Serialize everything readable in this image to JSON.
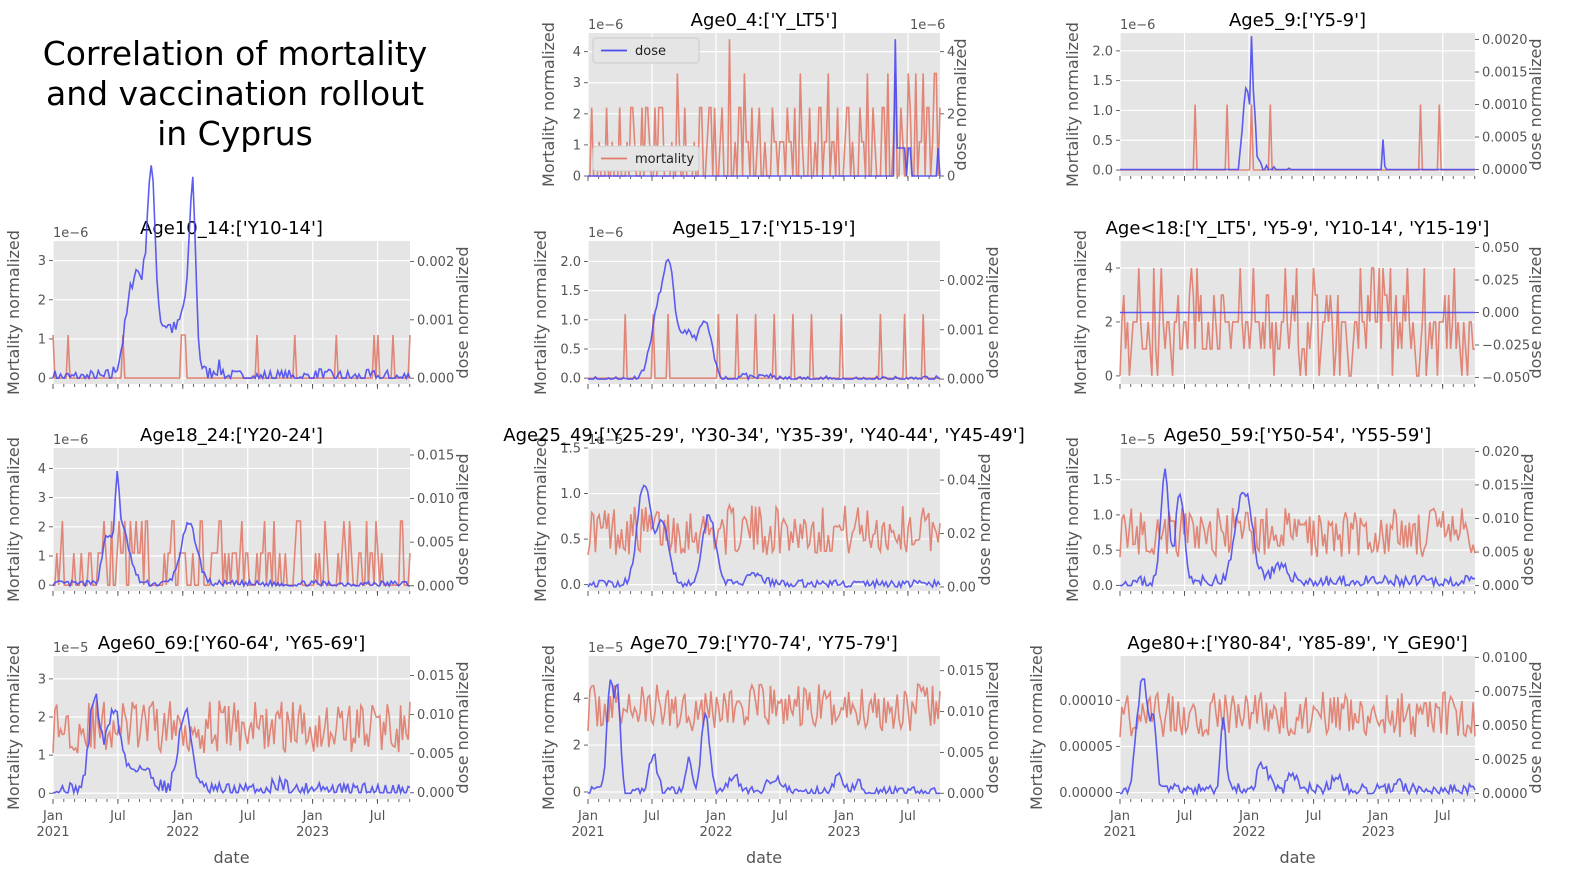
{
  "figure": {
    "suptitle": "Correlation of mortality\n and vaccination rollout\n in Cyprus"
  },
  "colors": {
    "mortality": "#e07b6a",
    "dose": "#4b4bf0"
  },
  "chart_data": [
    {
      "type": "line",
      "title": "Age0_4:['Y_LT5']",
      "xlabel": "",
      "ylabel": "Mortality normalized",
      "y2label": "dose normalized",
      "yticks": [
        0,
        1,
        2,
        3,
        4
      ],
      "yticklabels": [
        "0",
        "1",
        "2",
        "3",
        "4"
      ],
      "ylim": [
        0,
        4.6
      ],
      "yoffset": "1e−6",
      "y2ticks": [
        0,
        2,
        4
      ],
      "y2ticklabels": [
        "0",
        "2",
        "4"
      ],
      "y2lim": [
        0,
        4.6
      ],
      "y2offset": "1e−6",
      "legend": [
        {
          "name": "dose",
          "loc": "top-left"
        },
        {
          "name": "mortality",
          "loc": "bottom-left"
        }
      ],
      "series": [
        {
          "name": "mortality",
          "axis": "left",
          "values": [
            0,
            2.2,
            0,
            0,
            1.1,
            0,
            0,
            2.2,
            0,
            1.1,
            0,
            0,
            2.2,
            0,
            0,
            1.1,
            0,
            2.2,
            1.1,
            0,
            0,
            2.2,
            0,
            2.2,
            1.1,
            0,
            2.2,
            0,
            2.2,
            2.2,
            0,
            0,
            0,
            1.1,
            0,
            3.3,
            1.1,
            0,
            2.2,
            0,
            0,
            0,
            1.1,
            0,
            2.2,
            2.2,
            0,
            1.1,
            2.2,
            0,
            2.2,
            0,
            1.1,
            2.2,
            0,
            0,
            4.4,
            0,
            1.1,
            0,
            2.2,
            0,
            3.3,
            1.1,
            0,
            2.2,
            0,
            1.1,
            2.2,
            0,
            1.1,
            0,
            0,
            2.2,
            1.1,
            0,
            1.1,
            1.1,
            0,
            2.2,
            1.1,
            0,
            2.2,
            0,
            3.3,
            1.1,
            0,
            0,
            2.2,
            0,
            1.1,
            0,
            2.2,
            0,
            1.1,
            3.3,
            0,
            1.1,
            0,
            2.2,
            0,
            0,
            1.1,
            2.2,
            0,
            1.1,
            0,
            0,
            2.2,
            1.1,
            0,
            3.3,
            0,
            2.2,
            1.1,
            0,
            0,
            2.2,
            0,
            3.3,
            0,
            1.1,
            3.3,
            0,
            2.2,
            1.1,
            0,
            3.3,
            2.2,
            0,
            3.3,
            0,
            1.1,
            3.3,
            0,
            2.2,
            0,
            1.1,
            3.3,
            0,
            2.2
          ]
        },
        {
          "name": "dose",
          "axis": "right",
          "values": [
            0,
            0,
            0,
            0,
            0,
            0,
            0,
            0,
            0,
            0,
            0,
            0,
            0,
            0,
            0,
            0,
            0,
            0,
            0,
            0,
            0,
            0,
            0,
            0,
            0,
            0,
            0,
            0,
            0,
            0,
            0,
            0,
            0,
            0,
            0,
            0,
            0,
            0,
            0,
            0,
            0,
            0,
            0,
            0,
            0,
            0,
            0,
            0,
            0,
            0,
            0,
            0,
            0,
            0,
            0,
            0,
            0,
            0,
            0,
            0,
            0,
            0,
            0,
            0,
            0,
            0,
            0,
            0,
            0,
            0,
            0,
            0,
            0,
            0,
            0,
            0,
            0,
            0,
            0,
            0,
            0,
            0,
            0,
            0,
            0,
            0,
            0,
            0,
            0,
            0,
            0,
            0,
            0,
            0,
            0,
            0,
            0,
            0,
            0,
            0,
            0,
            0,
            0,
            0,
            0,
            0,
            0,
            0,
            0,
            0,
            0,
            0,
            0,
            0,
            0,
            0,
            0,
            0,
            0,
            0,
            0,
            0,
            0,
            0,
            0,
            0,
            0,
            4.4,
            0.9,
            0.9,
            0.9,
            0.9,
            0,
            0.9,
            0,
            0,
            0,
            0,
            0,
            0,
            0,
            0,
            0,
            0,
            0,
            0.9,
            0
          ]
        }
      ]
    },
    {
      "type": "line",
      "title": "Age5_9:['Y5-9']",
      "ylabel": "Mortality normalized",
      "y2label": "dose normalized",
      "yticks": [
        0,
        0.5,
        1,
        1.5,
        2
      ],
      "yticklabels": [
        "0.0",
        "0.5",
        "1.0",
        "1.5",
        "2.0"
      ],
      "ylim": [
        -0.1,
        2.3
      ],
      "yoffset": "1e−6",
      "y2ticks": [
        0,
        0.0005,
        0.001,
        0.0015,
        0.002
      ],
      "y2ticklabels": [
        "0.0000",
        "0.0005",
        "0.0010",
        "0.0015",
        "0.0020"
      ],
      "y2lim": [
        -0.0001,
        0.0021
      ],
      "y2offset": "",
      "series": [
        {
          "name": "mortality",
          "axis": "left",
          "sparse": [
            [
              40,
              1.1
            ],
            [
              57,
              1.1
            ],
            [
              70,
              1.1
            ],
            [
              80,
              1.1
            ],
            [
              160,
              1.1
            ],
            [
              170,
              1.1
            ]
          ],
          "n": 190
        },
        {
          "name": "dose",
          "axis": "right",
          "sparse": [
            [
              64,
              0.0003
            ],
            [
              65,
              0.0006
            ],
            [
              66,
              0.001
            ],
            [
              67,
              0.00125
            ],
            [
              68,
              0.0012
            ],
            [
              69,
              0.001
            ],
            [
              70,
              0.00205
            ],
            [
              71,
              0.0012
            ],
            [
              72,
              0.0008
            ],
            [
              73,
              0.0002
            ],
            [
              74,
              0.00015
            ],
            [
              75,
              0.0001
            ],
            [
              78,
              6e-05
            ],
            [
              82,
              4e-05
            ],
            [
              90,
              2e-05
            ],
            [
              140,
              0.00046
            ],
            [
              141,
              5e-05
            ]
          ],
          "n": 190
        }
      ]
    },
    {
      "type": "line",
      "title": "Age10_14:['Y10-14']",
      "ylabel": "Mortality normalized",
      "y2label": "dose normalized",
      "yticks": [
        0,
        1,
        2,
        3
      ],
      "yticklabels": [
        "0",
        "1",
        "2",
        "3"
      ],
      "ylim": [
        -0.15,
        3.5
      ],
      "yoffset": "1e−6",
      "y2ticks": [
        0,
        0.001,
        0.002
      ],
      "y2ticklabels": [
        "0.000",
        "0.001",
        "0.002"
      ],
      "y2lim": [
        -0.0001,
        0.00235
      ],
      "y2offset": "",
      "series": [
        {
          "name": "mortality",
          "axis": "left",
          "sparse": [
            [
              0,
              1.1
            ],
            [
              8,
              1.1
            ],
            [
              37,
              1.1
            ],
            [
              68,
              1.1
            ],
            [
              69,
              1.1
            ],
            [
              70,
              1.1
            ],
            [
              108,
              1.1
            ],
            [
              128,
              1.1
            ],
            [
              150,
              1.1
            ],
            [
              170,
              1.1
            ],
            [
              172,
              1.1
            ],
            [
              180,
              1.1
            ],
            [
              189,
              1.1
            ]
          ],
          "n": 190
        },
        {
          "name": "dose",
          "axis": "right",
          "curve": "age10"
        }
      ]
    },
    {
      "type": "line",
      "title": "Age15_17:['Y15-19']",
      "ylabel": "Mortality normalized",
      "y2label": "dose normalized",
      "yticks": [
        0,
        0.5,
        1,
        1.5,
        2
      ],
      "yticklabels": [
        "0.0",
        "0.5",
        "1.0",
        "1.5",
        "2.0"
      ],
      "ylim": [
        -0.1,
        2.35
      ],
      "yoffset": "1e−6",
      "y2ticks": [
        0,
        0.001,
        0.002
      ],
      "y2ticklabels": [
        "0.000",
        "0.001",
        "0.002"
      ],
      "y2lim": [
        -0.0001,
        0.0028
      ],
      "y2offset": "",
      "series": [
        {
          "name": "mortality",
          "axis": "left",
          "sparse": [
            [
              20,
              1.1
            ],
            [
              35,
              1.1
            ],
            [
              43,
              1.1
            ],
            [
              70,
              1.1
            ],
            [
              80,
              1.1
            ],
            [
              90,
              1.1
            ],
            [
              100,
              1.1
            ],
            [
              110,
              1.1
            ],
            [
              120,
              1.1
            ],
            [
              136,
              1.1
            ],
            [
              157,
              1.1
            ],
            [
              170,
              1.1
            ],
            [
              180,
              1.1
            ]
          ],
          "n": 190
        },
        {
          "name": "dose",
          "axis": "right",
          "curve": "age15"
        }
      ]
    },
    {
      "type": "line",
      "title": "Age<18:['Y_LT5', 'Y5-9', 'Y10-14', 'Y15-19']",
      "ylabel": "Mortality normalized",
      "y2label": "dose normalized",
      "yticks": [
        0,
        2,
        4
      ],
      "yticklabels": [
        "0",
        "2",
        "4"
      ],
      "ylim": [
        -0.3,
        5
      ],
      "yoffset": "",
      "y2ticks": [
        -0.05,
        -0.025,
        0,
        0.025,
        0.05
      ],
      "y2ticklabels": [
        "−0.050",
        "−0.025",
        "0.000",
        "0.025",
        "0.050"
      ],
      "y2lim": [
        -0.055,
        0.055
      ],
      "y2offset": "",
      "series": [
        {
          "name": "mortality",
          "axis": "left",
          "curve": "noise4"
        },
        {
          "name": "dose",
          "axis": "right",
          "constant": 0
        }
      ]
    },
    {
      "type": "line",
      "title": "Age18_24:['Y20-24']",
      "ylabel": "Mortality normalized",
      "y2label": "dose normalized",
      "yticks": [
        0,
        1,
        2,
        3,
        4
      ],
      "yticklabels": [
        "0",
        "1",
        "2",
        "3",
        "4"
      ],
      "ylim": [
        -0.2,
        4.7
      ],
      "yoffset": "1e−6",
      "y2ticks": [
        0,
        0.005,
        0.01,
        0.015
      ],
      "y2ticklabels": [
        "0.000",
        "0.005",
        "0.010",
        "0.015"
      ],
      "y2lim": [
        -0.0006,
        0.0158
      ],
      "y2offset": "",
      "series": [
        {
          "name": "mortality",
          "axis": "left",
          "curve": "noise18"
        },
        {
          "name": "dose",
          "axis": "right",
          "curve": "age18"
        }
      ]
    },
    {
      "type": "line",
      "title": "Age25_49:['Y25-29', 'Y30-34', 'Y35-39', 'Y40-44', 'Y45-49']",
      "ylabel": "Mortality normalized",
      "y2label": "dose normalized",
      "yticks": [
        0,
        0.5,
        1,
        1.5
      ],
      "yticklabels": [
        "0.0",
        "0.5",
        "1.0",
        "1.5"
      ],
      "ylim": [
        -0.07,
        1.5
      ],
      "yoffset": "1e−5",
      "y2ticks": [
        0,
        0.02,
        0.04
      ],
      "y2ticklabels": [
        "0.00",
        "0.02",
        "0.04"
      ],
      "y2lim": [
        -0.0015,
        0.052
      ],
      "y2offset": "",
      "series": [
        {
          "name": "mortality",
          "axis": "left",
          "curve": "noise25"
        },
        {
          "name": "dose",
          "axis": "right",
          "curve": "age25"
        }
      ]
    },
    {
      "type": "line",
      "title": "Age50_59:['Y50-54', 'Y55-59']",
      "ylabel": "Mortality normalized",
      "y2label": "dose normalized",
      "yticks": [
        0,
        0.5,
        1,
        1.5
      ],
      "yticklabels": [
        "0.0",
        "0.5",
        "1.0",
        "1.5"
      ],
      "ylim": [
        -0.08,
        1.95
      ],
      "yoffset": "1e−5",
      "y2ticks": [
        0,
        0.005,
        0.01,
        0.015,
        0.02
      ],
      "y2ticklabels": [
        "0.000",
        "0.005",
        "0.010",
        "0.015",
        "0.020"
      ],
      "y2lim": [
        -0.0008,
        0.0205
      ],
      "y2offset": "",
      "series": [
        {
          "name": "mortality",
          "axis": "left",
          "curve": "noise50"
        },
        {
          "name": "dose",
          "axis": "right",
          "curve": "age50"
        }
      ]
    },
    {
      "type": "line",
      "title": "Age60_69:['Y60-64', 'Y65-69']",
      "ylabel": "Mortality normalized",
      "y2label": "dose normalized",
      "yticks": [
        0,
        1,
        2,
        3
      ],
      "yticklabels": [
        "0",
        "1",
        "2",
        "3"
      ],
      "ylim": [
        -0.15,
        3.6
      ],
      "yoffset": "1e−5",
      "y2ticks": [
        0,
        0.005,
        0.01,
        0.015
      ],
      "y2ticklabels": [
        "0.000",
        "0.005",
        "0.010",
        "0.015"
      ],
      "y2lim": [
        -0.0008,
        0.0175
      ],
      "y2offset": "",
      "series": [
        {
          "name": "mortality",
          "axis": "left",
          "curve": "noise60"
        },
        {
          "name": "dose",
          "axis": "right",
          "curve": "age60"
        }
      ]
    },
    {
      "type": "line",
      "title": "Age70_79:['Y70-74', 'Y75-79']",
      "ylabel": "Mortality normalized",
      "y2label": "dose normalized",
      "yticks": [
        0,
        2,
        4
      ],
      "yticklabels": [
        "0",
        "2",
        "4"
      ],
      "ylim": [
        -0.3,
        5.8
      ],
      "yoffset": "1e−5",
      "y2ticks": [
        0,
        0.005,
        0.01,
        0.015
      ],
      "y2ticklabels": [
        "0.000",
        "0.005",
        "0.010",
        "0.015"
      ],
      "y2lim": [
        -0.0007,
        0.0168
      ],
      "y2offset": "",
      "series": [
        {
          "name": "mortality",
          "axis": "left",
          "curve": "noise70"
        },
        {
          "name": "dose",
          "axis": "right",
          "curve": "age70"
        }
      ]
    },
    {
      "type": "line",
      "title": "Age80+:['Y80-84', 'Y85-89', 'Y_GE90']",
      "ylabel": "Mortality normalized",
      "y2label": "dose normalized",
      "yticks": [
        0,
        5e-05,
        0.0001
      ],
      "yticklabels": [
        "0.00000",
        "0.00005",
        "0.00010"
      ],
      "ylim": [
        -7e-06,
        0.000148
      ],
      "yoffset": "",
      "y2ticks": [
        0,
        0.0025,
        0.005,
        0.0075,
        0.01
      ],
      "y2ticklabels": [
        "0.0000",
        "0.0025",
        "0.0050",
        "0.0075",
        "0.0100"
      ],
      "y2lim": [
        -0.0004,
        0.0101
      ],
      "y2offset": "",
      "series": [
        {
          "name": "mortality",
          "axis": "left",
          "curve": "noise80"
        },
        {
          "name": "dose",
          "axis": "right",
          "curve": "age80"
        }
      ]
    }
  ],
  "x_axis": {
    "label": "date",
    "ticks": [
      {
        "pos": 0,
        "l1": "Jan",
        "l2": "2021"
      },
      {
        "pos": 26,
        "l1": "Jul",
        "l2": ""
      },
      {
        "pos": 52,
        "l1": "Jan",
        "l2": "2022"
      },
      {
        "pos": 78,
        "l1": "Jul",
        "l2": ""
      },
      {
        "pos": 104,
        "l1": "Jan",
        "l2": "2023"
      },
      {
        "pos": 130,
        "l1": "Jul",
        "l2": ""
      }
    ],
    "n_weeks": 143
  }
}
